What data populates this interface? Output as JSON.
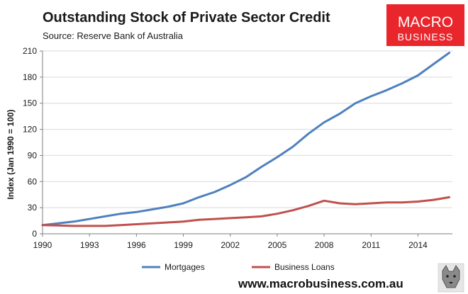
{
  "chart_data": {
    "type": "line",
    "title": "Outstanding Stock of Private Sector Credit",
    "subtitle": "Source: Reserve Bank of Australia",
    "ylabel": "Index (Jan 1990 = 100)",
    "xlabel": "",
    "xlim": [
      1990,
      2016.2
    ],
    "ylim": [
      0,
      210
    ],
    "x_ticks": [
      1990,
      1993,
      1996,
      1999,
      2002,
      2005,
      2008,
      2011,
      2014
    ],
    "y_ticks": [
      0,
      30,
      60,
      90,
      120,
      150,
      180,
      210
    ],
    "grid": true,
    "legend_position": "bottom",
    "series": [
      {
        "name": "Mortgages",
        "color": "#4f81bd",
        "x": [
          1990,
          1991,
          1992,
          1993,
          1994,
          1995,
          1996,
          1997,
          1998,
          1999,
          2000,
          2001,
          2002,
          2003,
          2004,
          2005,
          2006,
          2007,
          2008,
          2009,
          2010,
          2011,
          2012,
          2013,
          2014,
          2015,
          2016
        ],
        "y": [
          10,
          12,
          14,
          17,
          20,
          23,
          25,
          28,
          31,
          35,
          42,
          48,
          56,
          65,
          77,
          88,
          100,
          115,
          128,
          138,
          150,
          158,
          165,
          173,
          182,
          195,
          208
        ]
      },
      {
        "name": "Business Loans",
        "color": "#c0504d",
        "x": [
          1990,
          1991,
          1992,
          1993,
          1994,
          1995,
          1996,
          1997,
          1998,
          1999,
          2000,
          2001,
          2002,
          2003,
          2004,
          2005,
          2006,
          2007,
          2008,
          2009,
          2010,
          2011,
          2012,
          2013,
          2014,
          2015,
          2016
        ],
        "y": [
          10,
          9.5,
          9,
          9,
          9,
          10,
          11,
          12,
          13,
          14,
          16,
          17,
          18,
          19,
          20,
          23,
          27,
          32,
          38,
          35,
          34,
          35,
          36,
          36,
          37,
          39,
          42
        ]
      }
    ]
  },
  "branding": {
    "logo_line1": "MACRO",
    "logo_line2": "BUSINESS",
    "logo_color": "#e8262c",
    "footer_url": "www.macrobusiness.com.au",
    "mascot_icon": "wolf-icon"
  }
}
